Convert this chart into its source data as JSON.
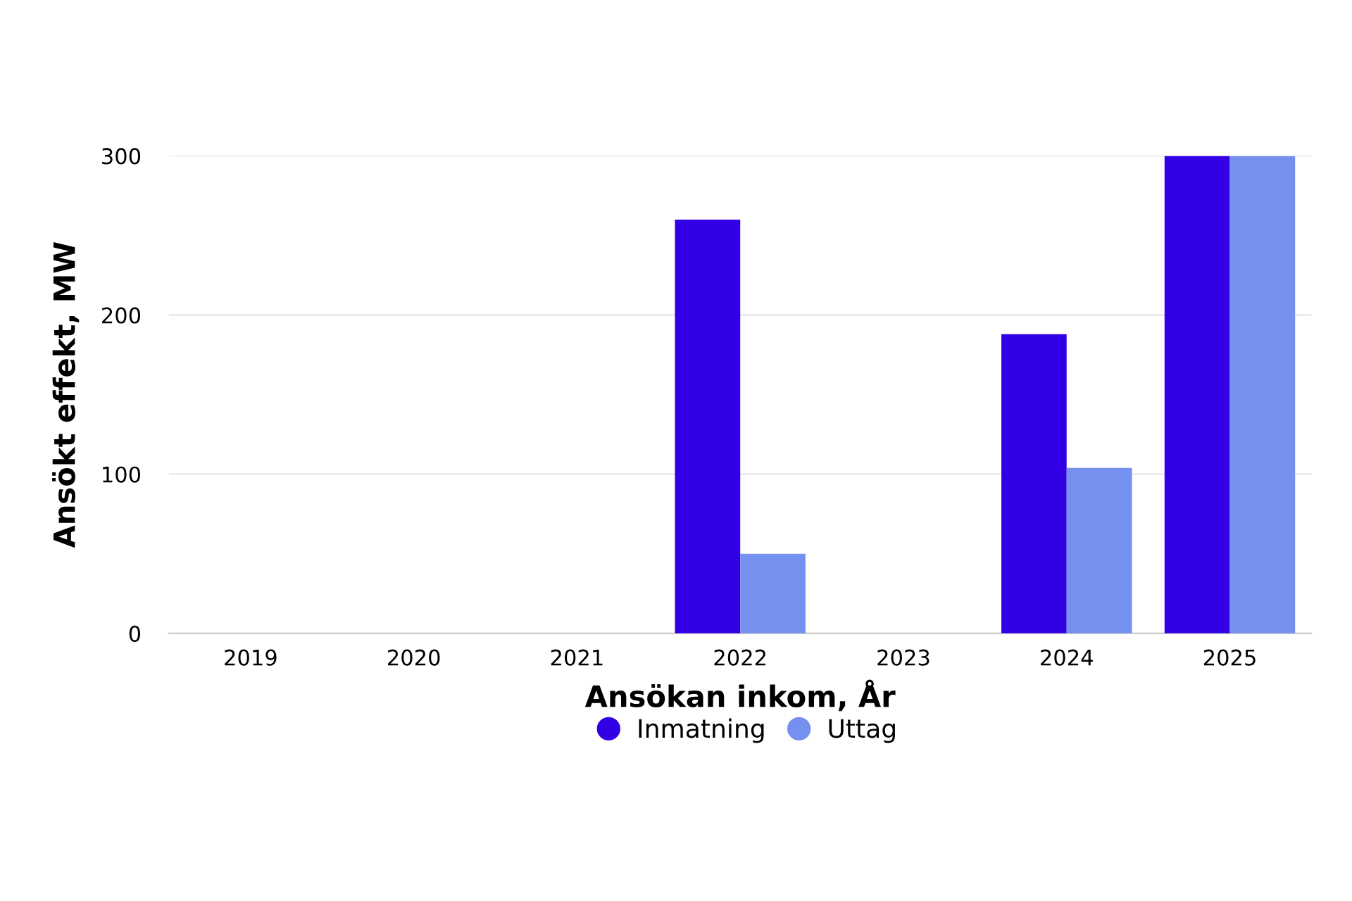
{
  "chart_data": {
    "type": "bar",
    "xlabel": "Ansökan inkom, År",
    "ylabel": "Ansökt effekt, MW",
    "categories": [
      "2019",
      "2020",
      "2021",
      "2022",
      "2023",
      "2024",
      "2025"
    ],
    "series": [
      {
        "name": "Inmatning",
        "color": "#3300e6",
        "values": [
          0,
          0,
          0,
          260,
          0,
          188,
          300
        ]
      },
      {
        "name": "Uttag",
        "color": "#7590ee",
        "values": [
          0,
          0,
          0,
          50,
          0,
          104,
          300
        ]
      }
    ],
    "ylim": [
      0,
      300
    ],
    "yticks": [
      0,
      100,
      200,
      300
    ],
    "grid": "y",
    "legend": "bottom"
  }
}
